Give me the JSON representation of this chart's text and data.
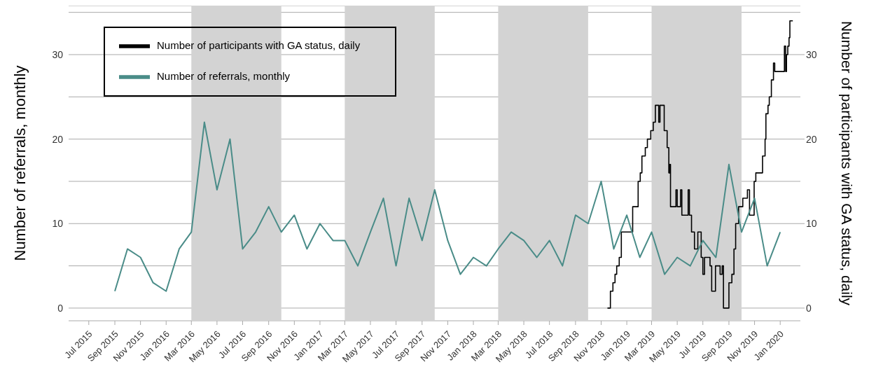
{
  "chart_data": {
    "type": "line",
    "ylabel": "Number of referrals, monthly",
    "y2label": "Number of participants with GA status, daily",
    "xlim": [
      "2015-05-14",
      "2020-02-18"
    ],
    "xticks": [
      {
        "value": "2015-07-01",
        "label": "Jul 2015"
      },
      {
        "value": "2015-09-01",
        "label": "Sep 2015"
      },
      {
        "value": "2015-11-01",
        "label": "Nov 2015"
      },
      {
        "value": "2016-01-01",
        "label": "Jan 2016"
      },
      {
        "value": "2016-03-01",
        "label": "Mar 2016"
      },
      {
        "value": "2016-05-01",
        "label": "May 2016"
      },
      {
        "value": "2016-07-01",
        "label": "Jul 2016"
      },
      {
        "value": "2016-09-01",
        "label": "Sep 2016"
      },
      {
        "value": "2016-11-01",
        "label": "Nov 2016"
      },
      {
        "value": "2017-01-01",
        "label": "Jan 2017"
      },
      {
        "value": "2017-03-01",
        "label": "Mar 2017"
      },
      {
        "value": "2017-05-01",
        "label": "May 2017"
      },
      {
        "value": "2017-07-01",
        "label": "Jul 2017"
      },
      {
        "value": "2017-09-01",
        "label": "Sep 2017"
      },
      {
        "value": "2017-11-01",
        "label": "Nov 2017"
      },
      {
        "value": "2018-01-01",
        "label": "Jan 2018"
      },
      {
        "value": "2018-03-01",
        "label": "Mar 2018"
      },
      {
        "value": "2018-05-01",
        "label": "May 2018"
      },
      {
        "value": "2018-07-01",
        "label": "Jul 2018"
      },
      {
        "value": "2018-09-01",
        "label": "Sep 2018"
      },
      {
        "value": "2018-11-01",
        "label": "Nov 2018"
      },
      {
        "value": "2019-01-01",
        "label": "Jan 2019"
      },
      {
        "value": "2019-03-01",
        "label": "Mar 2019"
      },
      {
        "value": "2019-05-01",
        "label": "May 2019"
      },
      {
        "value": "2019-07-01",
        "label": "Jul 2019"
      },
      {
        "value": "2019-09-01",
        "label": "Sep 2019"
      },
      {
        "value": "2019-11-01",
        "label": "Nov 2019"
      },
      {
        "value": "2020-01-01",
        "label": "Jan 2020"
      }
    ],
    "ylim": [
      -1.5,
      35.8
    ],
    "yticks": [
      0,
      {
        "value": 5,
        "label": null
      },
      10,
      {
        "value": 15,
        "label": null
      },
      20,
      {
        "value": 25,
        "label": null
      },
      30,
      {
        "value": 35,
        "label": null
      }
    ],
    "y2lim": [
      -1.5,
      35.8
    ],
    "y2ticks": [
      0,
      10,
      20,
      30
    ],
    "grid": "y",
    "legend": "top left",
    "bands": [
      {
        "axis": "x",
        "from": "2016-03-01",
        "to": "2016-10-01",
        "color": "#d3d3d3"
      },
      {
        "axis": "x",
        "from": "2017-03-01",
        "to": "2017-10-01",
        "color": "#d3d3d3"
      },
      {
        "axis": "x",
        "from": "2018-03-01",
        "to": "2018-10-01",
        "color": "#d3d3d3"
      },
      {
        "axis": "x",
        "from": "2019-03-01",
        "to": "2019-10-01",
        "color": "#d3d3d3"
      }
    ],
    "series": [
      {
        "name": "Number of participants with GA status, daily",
        "type": "step",
        "axis": "y2",
        "color": "#000000",
        "x": [
          "2018-11-16",
          "2018-11-23",
          "2018-11-29",
          "2018-12-04",
          "2018-12-08",
          "2018-12-14",
          "2018-12-19",
          "2019-01-15",
          "2019-01-28",
          "2019-02-02",
          "2019-02-06",
          "2019-02-14",
          "2019-02-19",
          "2019-02-27",
          "2019-03-05",
          "2019-03-10",
          "2019-03-18",
          "2019-03-21",
          "2019-03-31",
          "2019-04-07",
          "2019-04-11",
          "2019-04-13",
          "2019-04-15",
          "2019-04-28",
          "2019-05-01",
          "2019-05-09",
          "2019-05-12",
          "2019-05-27",
          "2019-05-30",
          "2019-06-04",
          "2019-06-11",
          "2019-06-19",
          "2019-06-27",
          "2019-07-01",
          "2019-07-05",
          "2019-07-18",
          "2019-07-22",
          "2019-07-31",
          "2019-08-11",
          "2019-08-16",
          "2019-08-19",
          "2019-09-01",
          "2019-09-08",
          "2019-09-13",
          "2019-09-17",
          "2019-09-24",
          "2019-10-04",
          "2019-10-15",
          "2019-10-20",
          "2019-10-31",
          "2019-11-04",
          "2019-11-20",
          "2019-11-26",
          "2019-11-28",
          "2019-12-03",
          "2019-12-06",
          "2019-12-11",
          "2019-12-16",
          "2019-12-19",
          "2020-01-11",
          "2020-01-14",
          "2020-01-16",
          "2020-01-19",
          "2020-01-22",
          "2020-01-24",
          "2020-01-31"
        ],
        "values": [
          0,
          2,
          3,
          4,
          5,
          6,
          9,
          12,
          15,
          16,
          18,
          19,
          20,
          21,
          22,
          24,
          22,
          24,
          21,
          19,
          16,
          17,
          12,
          14,
          12,
          14,
          11,
          14,
          11,
          9,
          7,
          9,
          6,
          4,
          6,
          5,
          2,
          5,
          4,
          5,
          0,
          3,
          4,
          7,
          10,
          12,
          13,
          14,
          11,
          15,
          16,
          18,
          20,
          23,
          24,
          25,
          27,
          29,
          28,
          31,
          28,
          30,
          31,
          32,
          34,
          34
        ]
      },
      {
        "name": "Number of referrals, monthly",
        "type": "line",
        "color": "#4a8c88",
        "x": [
          "2015-09-01",
          "2015-10-01",
          "2015-11-01",
          "2015-12-01",
          "2016-01-01",
          "2016-02-01",
          "2016-03-01",
          "2016-04-01",
          "2016-05-01",
          "2016-06-01",
          "2016-07-01",
          "2016-08-01",
          "2016-09-01",
          "2016-10-01",
          "2016-11-01",
          "2016-12-01",
          "2017-01-01",
          "2017-02-01",
          "2017-03-01",
          "2017-04-01",
          "2017-05-01",
          "2017-06-01",
          "2017-07-01",
          "2017-08-01",
          "2017-09-01",
          "2017-10-01",
          "2017-11-01",
          "2017-12-01",
          "2018-01-01",
          "2018-02-01",
          "2018-03-01",
          "2018-04-01",
          "2018-05-01",
          "2018-06-01",
          "2018-07-01",
          "2018-08-01",
          "2018-09-01",
          "2018-10-01",
          "2018-11-01",
          "2018-12-01",
          "2019-01-01",
          "2019-02-01",
          "2019-03-01",
          "2019-04-01",
          "2019-05-01",
          "2019-06-01",
          "2019-07-01",
          "2019-08-01",
          "2019-09-01",
          "2019-10-01",
          "2019-11-01",
          "2019-12-01",
          "2020-01-01"
        ],
        "values": [
          2,
          7,
          6,
          3,
          2,
          7,
          9,
          22,
          14,
          20,
          7,
          9,
          12,
          9,
          11,
          7,
          10,
          8,
          8,
          5,
          9,
          13,
          5,
          13,
          8,
          14,
          8,
          4,
          6,
          5,
          7,
          9,
          8,
          6,
          8,
          5,
          11,
          10,
          15,
          7,
          11,
          6,
          9,
          4,
          6,
          5,
          8,
          6,
          17,
          9,
          13,
          5,
          9
        ]
      }
    ]
  }
}
